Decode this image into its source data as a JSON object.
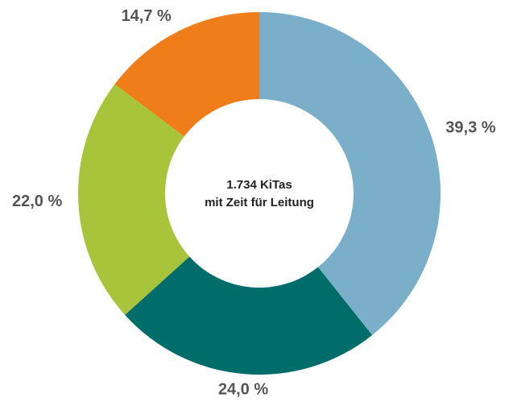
{
  "chart_data": {
    "type": "donut",
    "center_text": [
      "1.734 KiTas",
      "mit Zeit für Leitung"
    ],
    "values": [
      39.3,
      24.0,
      22.0,
      14.7
    ],
    "value_labels": [
      "39,3 %",
      "24,0 %",
      "22,0 %",
      "14,7 %"
    ],
    "colors": [
      "#7bafc9",
      "#006d6a",
      "#a8c43a",
      "#ee7d1a"
    ]
  }
}
